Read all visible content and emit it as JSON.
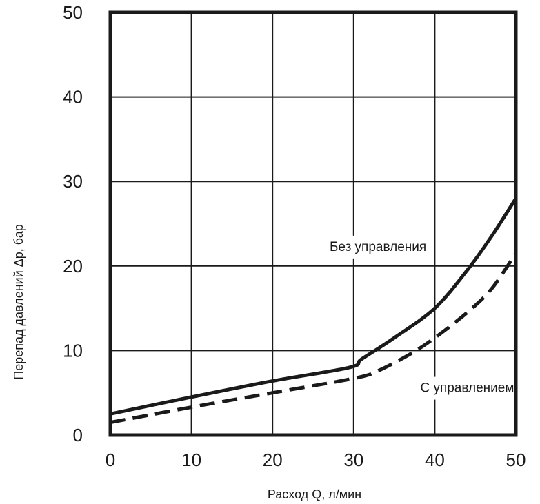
{
  "chart_data": {
    "type": "line",
    "title": "",
    "xlabel": "Расход Q, л/мин",
    "ylabel": "Перепад давлений Δp, бар",
    "xlim": [
      0,
      50
    ],
    "ylim": [
      0,
      50
    ],
    "x_ticks": [
      "0",
      "10",
      "20",
      "30",
      "40",
      "50"
    ],
    "y_ticks": [
      "0",
      "10",
      "20",
      "30",
      "40",
      "50"
    ],
    "grid": true,
    "series": [
      {
        "name": "Без управления",
        "style": "solid",
        "color": "#1a1a1a",
        "x": [
          0,
          10,
          20,
          29.5,
          31,
          35,
          40,
          44,
          47,
          50
        ],
        "y": [
          2.5,
          4.5,
          6.4,
          8.0,
          9.0,
          11.5,
          15.0,
          19.5,
          23.5,
          28.0
        ]
      },
      {
        "name": "С управлением",
        "style": "dashed",
        "color": "#1a1a1a",
        "x": [
          0,
          10,
          20,
          30,
          33,
          37,
          40,
          44,
          47,
          50
        ],
        "y": [
          1.5,
          3.3,
          5.0,
          6.7,
          7.6,
          9.6,
          11.5,
          14.5,
          17.3,
          21.5
        ]
      }
    ],
    "annotations": [
      {
        "text": "Без управления",
        "x": 33,
        "y": 22.2
      },
      {
        "text": "С управлением",
        "x": 44,
        "y": 5.5
      }
    ]
  }
}
